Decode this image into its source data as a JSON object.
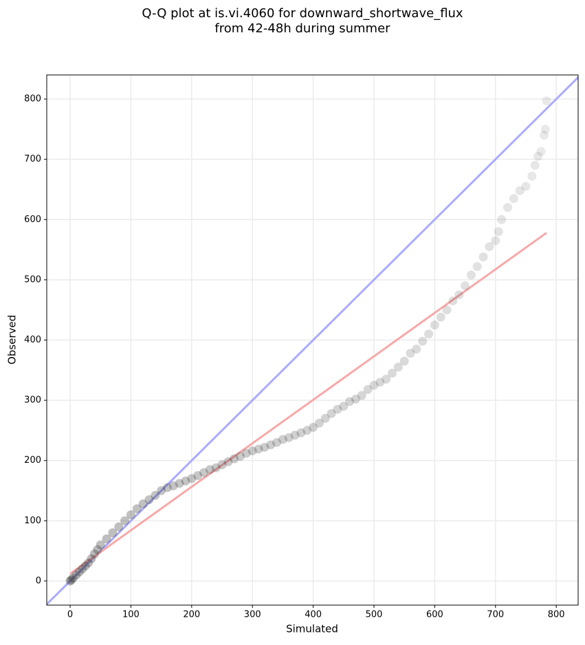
{
  "chart_data": {
    "type": "scatter",
    "title": [
      "Q-Q plot at is.vi.4060 for downward_shortwave_flux",
      "from 42-48h during summer"
    ],
    "x_label": "Simulated",
    "y_label": "Observed",
    "xlim": [
      -38.5,
      836
    ],
    "ylim": [
      -40,
      840
    ],
    "xticks": [
      0,
      100,
      200,
      300,
      400,
      500,
      600,
      700,
      800
    ],
    "yticks": [
      0,
      100,
      200,
      300,
      400,
      500,
      600,
      700,
      800
    ],
    "grid": true,
    "series": [
      {
        "color": "#333333",
        "x": [
          0,
          2,
          5,
          10,
          15,
          20,
          25,
          30,
          35,
          40,
          45,
          50,
          60,
          70,
          80,
          90,
          100,
          110,
          120,
          130,
          140,
          150,
          160,
          170,
          180,
          190,
          200,
          210,
          220,
          230,
          240,
          250,
          260,
          270,
          280,
          290,
          300,
          310,
          320,
          330,
          340,
          350,
          360,
          370,
          380,
          390,
          400,
          410,
          420,
          430,
          440,
          450,
          460,
          470,
          480,
          490,
          500,
          510,
          520,
          530,
          540,
          550,
          560,
          570,
          580,
          590,
          600,
          610,
          620,
          630,
          640,
          650,
          660,
          670,
          680,
          690,
          700,
          705,
          710,
          720,
          730,
          740,
          750,
          760,
          765,
          770,
          775,
          780,
          782,
          784
        ],
        "y": [
          0,
          2,
          5,
          10,
          15,
          20,
          25,
          30,
          37,
          45,
          52,
          60,
          70,
          80,
          90,
          100,
          110,
          120,
          128,
          135,
          142,
          150,
          155,
          158,
          162,
          166,
          170,
          175,
          180,
          185,
          188,
          193,
          198,
          203,
          207,
          212,
          216,
          219,
          222,
          226,
          230,
          235,
          238,
          242,
          246,
          250,
          255,
          262,
          270,
          278,
          285,
          290,
          298,
          302,
          308,
          318,
          325,
          330,
          335,
          345,
          355,
          365,
          378,
          385,
          398,
          410,
          425,
          438,
          450,
          465,
          475,
          490,
          508,
          522,
          538,
          555,
          565,
          580,
          600,
          620,
          635,
          648,
          655,
          672,
          690,
          705,
          713,
          740,
          750,
          797
        ]
      }
    ],
    "lines": [
      {
        "color": "#aaaaff",
        "x": [
          -40,
          840
        ],
        "y": [
          -40,
          840
        ]
      },
      {
        "color": "#f8a8a8",
        "x": [
          0,
          784
        ],
        "y": [
          12,
          578
        ]
      }
    ]
  }
}
